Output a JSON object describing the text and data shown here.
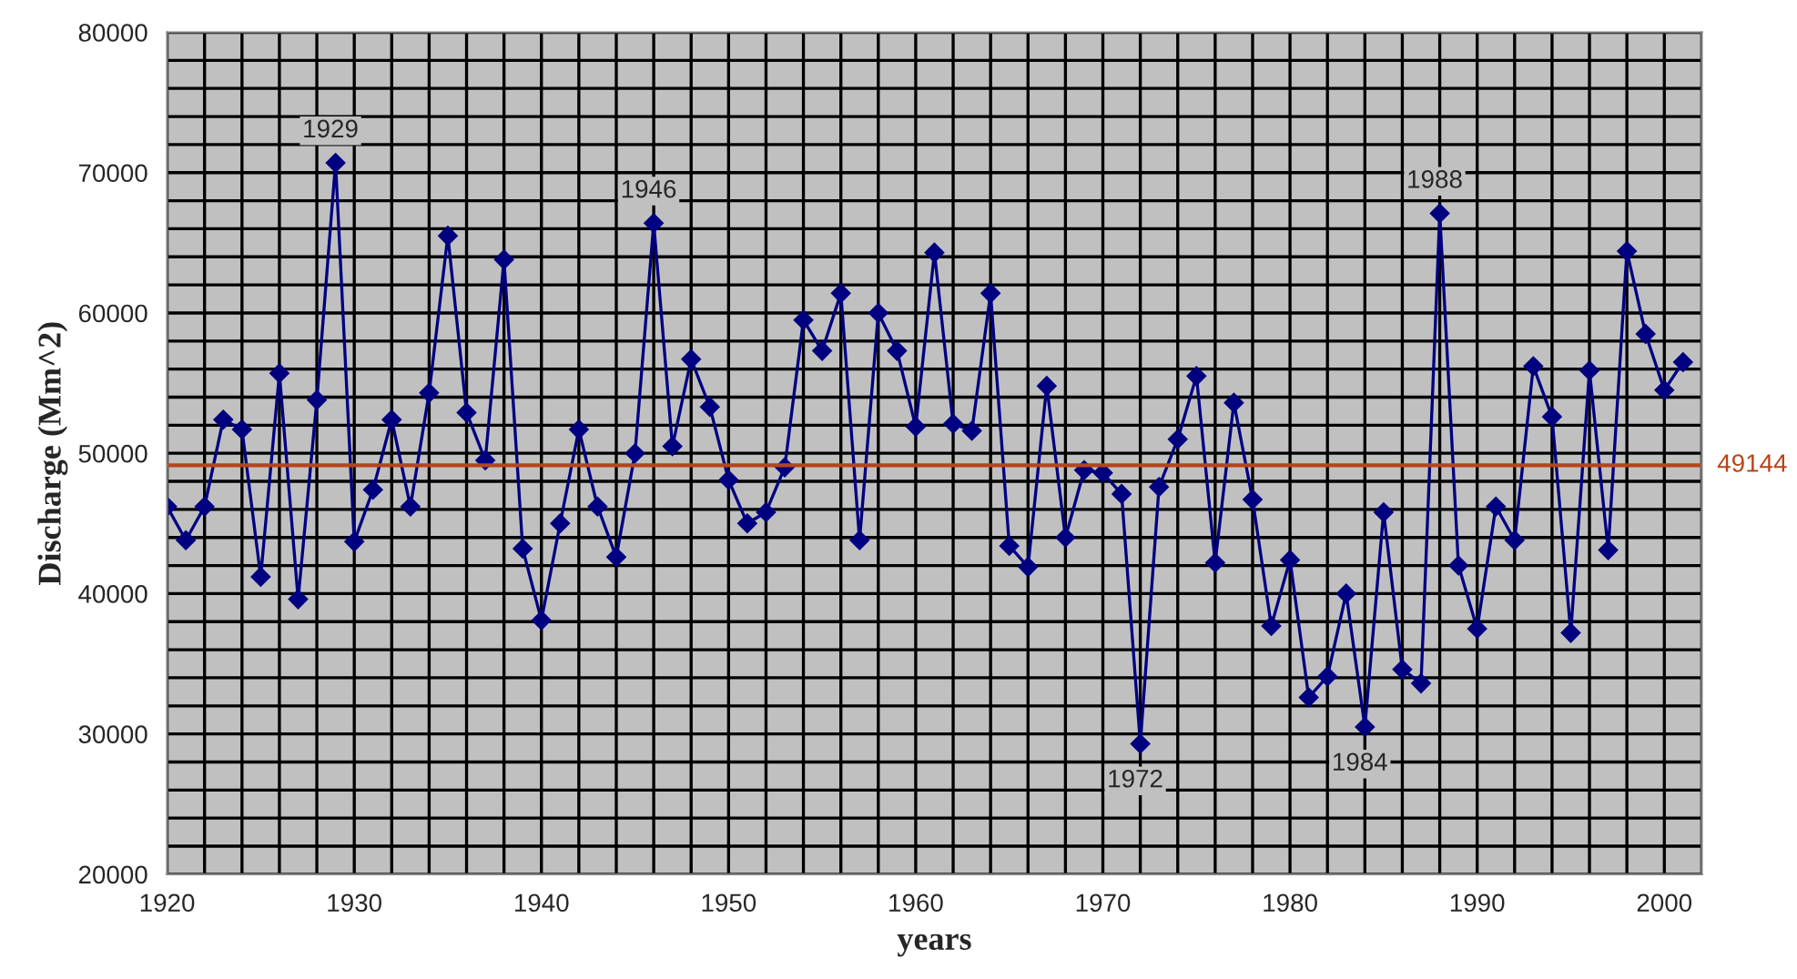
{
  "chart_data": {
    "type": "line",
    "xlabel": "years",
    "ylabel": "Discharge (Mm^2)",
    "x": [
      1920,
      1921,
      1922,
      1923,
      1924,
      1925,
      1926,
      1927,
      1928,
      1929,
      1930,
      1931,
      1932,
      1933,
      1934,
      1935,
      1936,
      1937,
      1938,
      1939,
      1940,
      1941,
      1942,
      1943,
      1944,
      1945,
      1946,
      1947,
      1948,
      1949,
      1950,
      1951,
      1952,
      1953,
      1954,
      1955,
      1956,
      1957,
      1958,
      1959,
      1960,
      1961,
      1962,
      1963,
      1964,
      1965,
      1966,
      1967,
      1968,
      1969,
      1970,
      1971,
      1972,
      1973,
      1974,
      1975,
      1976,
      1977,
      1978,
      1979,
      1980,
      1981,
      1982,
      1983,
      1984,
      1985,
      1986,
      1987,
      1988,
      1989,
      1990,
      1991,
      1992,
      1993,
      1994,
      1995,
      1996,
      1997,
      1998,
      1999,
      2000,
      2001
    ],
    "series": [
      {
        "color": "#000080",
        "values": [
          46200,
          43800,
          46200,
          52400,
          51700,
          41200,
          55700,
          39600,
          53800,
          70700,
          43700,
          47400,
          52400,
          46200,
          54300,
          65500,
          52900,
          49500,
          63800,
          43200,
          38100,
          45000,
          51700,
          46200,
          42600,
          50000,
          66400,
          50500,
          56700,
          53300,
          48100,
          45000,
          45800,
          49000,
          59500,
          57300,
          61400,
          43800,
          60000,
          57300,
          51900,
          64300,
          52100,
          51600,
          61400,
          43400,
          41900,
          54800,
          44000,
          48800,
          48600,
          47100,
          29300,
          47600,
          51000,
          55500,
          42200,
          53600,
          46700,
          37700,
          42400,
          32600,
          34100,
          40000,
          30500,
          45800,
          34600,
          33600,
          67100,
          42000,
          37500,
          46200,
          43800,
          56200,
          52600,
          37200,
          55900,
          43100,
          64400,
          58500,
          54500,
          56500
        ]
      }
    ],
    "xlim": [
      1920,
      2002
    ],
    "xticks": [
      1920,
      1930,
      1940,
      1950,
      1960,
      1970,
      1980,
      1990,
      2000
    ],
    "ylim": [
      20000,
      80000
    ],
    "yticks": [
      20000,
      30000,
      40000,
      50000,
      60000,
      70000,
      80000
    ],
    "grid": true,
    "marker": "diamond",
    "line_style": "solid",
    "ref_lines": [
      {
        "axis": "y",
        "value": 49144,
        "label": "49144",
        "color": "#b5451b"
      }
    ],
    "annotations": [
      {
        "text": "1929",
        "x": 1929,
        "y": 70700
      },
      {
        "text": "1946",
        "x": 1946,
        "y": 66400
      },
      {
        "text": "1972",
        "x": 1972,
        "y": 29300
      },
      {
        "text": "1984",
        "x": 1984,
        "y": 30500
      },
      {
        "text": "1988",
        "x": 1988,
        "y": 67100
      }
    ]
  }
}
